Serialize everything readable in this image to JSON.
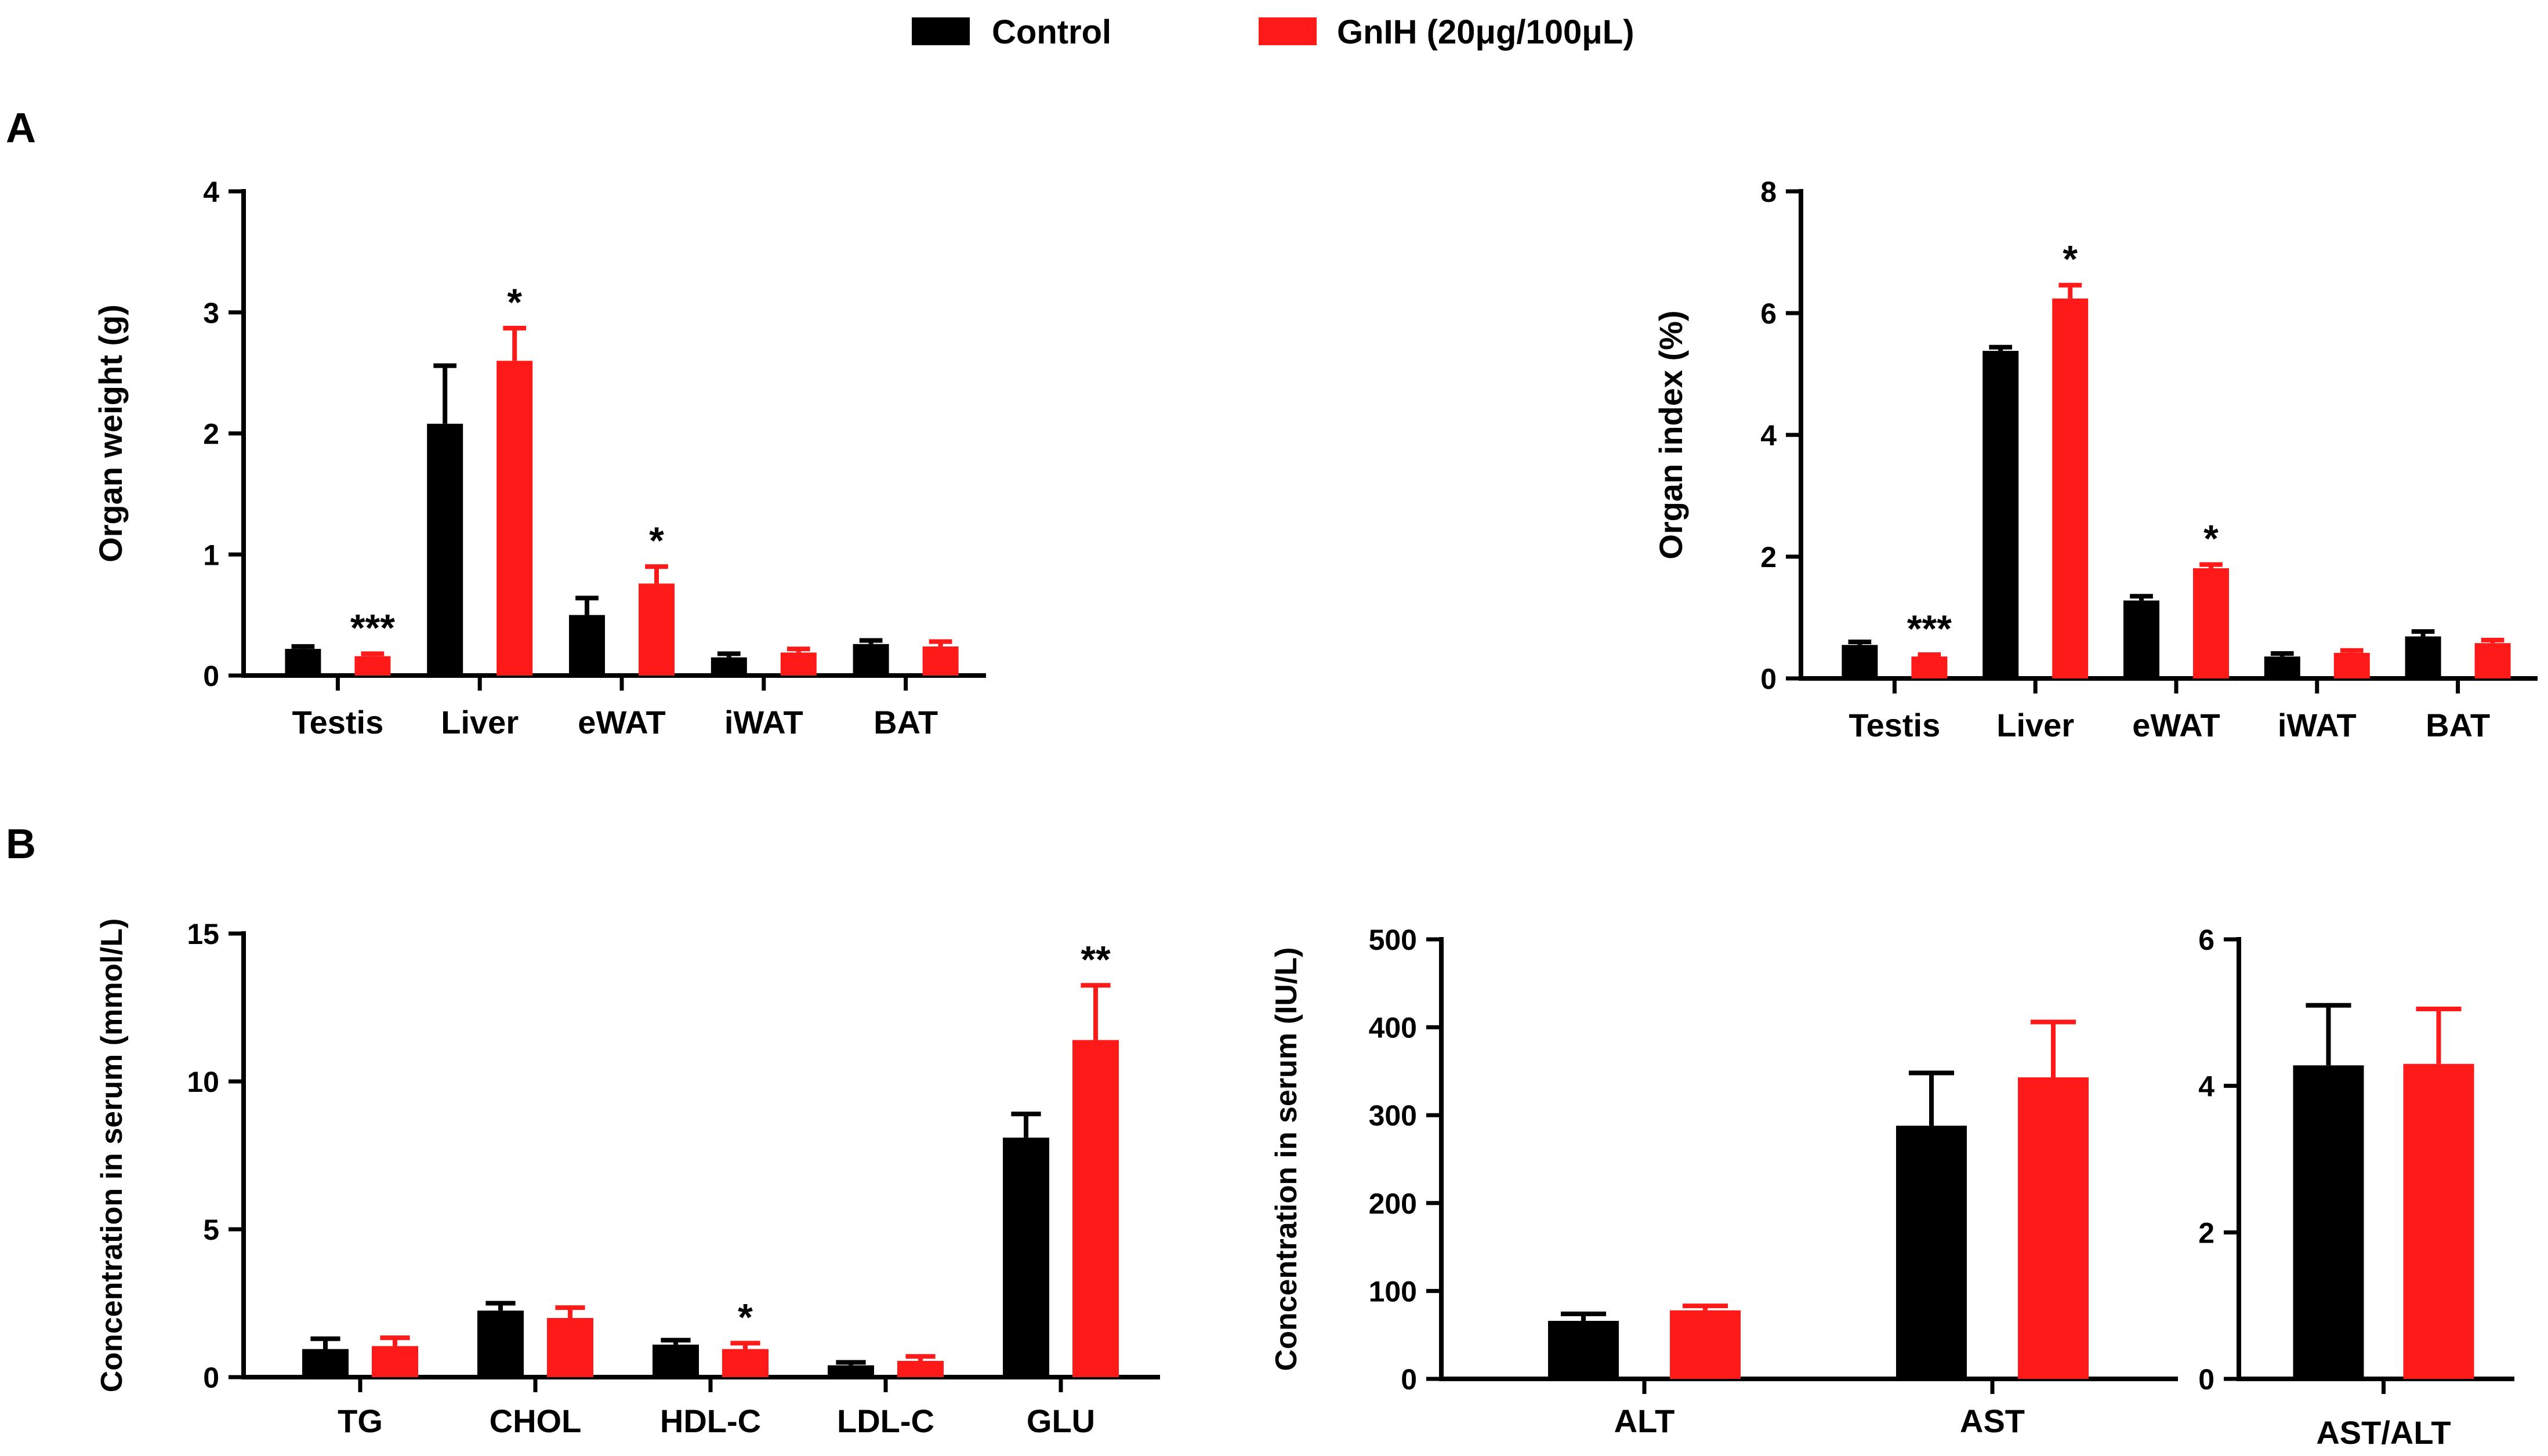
{
  "legend": {
    "control_label": "Control",
    "gnih_label": "GnIH (20μg/100μL)",
    "control_color": "#000000",
    "gnih_color": "#ff1a1a"
  },
  "panel_labels": {
    "a": "A",
    "b": "B"
  },
  "chart_data": [
    {
      "id": "organ-weight",
      "type": "bar",
      "title": "",
      "ylabel": "Organ weight (g)",
      "categories": [
        "Testis",
        "Liver",
        "eWAT",
        "iWAT",
        "BAT"
      ],
      "ylim": [
        0,
        4
      ],
      "yticks": [
        0,
        1,
        2,
        3,
        4
      ],
      "ytick_labels": [
        "0",
        "1",
        "2",
        "3",
        "4"
      ],
      "series": [
        {
          "name": "Control",
          "values": [
            0.22,
            2.08,
            0.5,
            0.15,
            0.26
          ],
          "errors": [
            0.02,
            0.48,
            0.14,
            0.03,
            0.03
          ]
        },
        {
          "name": "GnIH (20μg/100μL)",
          "values": [
            0.16,
            2.6,
            0.76,
            0.19,
            0.24
          ],
          "errors": [
            0.02,
            0.27,
            0.14,
            0.03,
            0.04
          ]
        }
      ],
      "annotations": [
        {
          "category": "Testis",
          "series": 1,
          "text": "***"
        },
        {
          "category": "Liver",
          "series": 1,
          "text": "*"
        },
        {
          "category": "eWAT",
          "series": 1,
          "text": "*"
        }
      ]
    },
    {
      "id": "organ-index",
      "type": "bar",
      "title": "",
      "ylabel": "Organ index (%)",
      "categories": [
        "Testis",
        "Liver",
        "eWAT",
        "iWAT",
        "BAT"
      ],
      "ylim": [
        0,
        8
      ],
      "yticks": [
        0,
        2,
        4,
        6,
        8
      ],
      "ytick_labels": [
        "0",
        "2",
        "4",
        "6",
        "8"
      ],
      "series": [
        {
          "name": "Control",
          "values": [
            0.55,
            5.38,
            1.28,
            0.36,
            0.69
          ],
          "errors": [
            0.05,
            0.06,
            0.07,
            0.05,
            0.08
          ]
        },
        {
          "name": "GnIH (20μg/100μL)",
          "values": [
            0.36,
            6.24,
            1.81,
            0.42,
            0.58
          ],
          "errors": [
            0.03,
            0.22,
            0.06,
            0.04,
            0.05
          ]
        }
      ],
      "annotations": [
        {
          "category": "Testis",
          "series": 1,
          "text": "***"
        },
        {
          "category": "Liver",
          "series": 1,
          "text": "*"
        },
        {
          "category": "eWAT",
          "series": 1,
          "text": "*"
        }
      ]
    },
    {
      "id": "serum-lipids",
      "type": "bar",
      "title": "",
      "ylabel": "Concentration in serum (mmol/L)",
      "categories": [
        "TG",
        "CHOL",
        "HDL-C",
        "LDL-C",
        "GLU"
      ],
      "ylim": [
        0,
        15
      ],
      "yticks": [
        0,
        5,
        10,
        15
      ],
      "ytick_labels": [
        "0",
        "5",
        "10",
        "15"
      ],
      "series": [
        {
          "name": "Control",
          "values": [
            0.95,
            2.25,
            1.1,
            0.4,
            8.1
          ],
          "errors": [
            0.35,
            0.25,
            0.15,
            0.1,
            0.8
          ]
        },
        {
          "name": "GnIH (20μg/100μL)",
          "values": [
            1.05,
            2.0,
            0.95,
            0.55,
            11.4
          ],
          "errors": [
            0.28,
            0.35,
            0.2,
            0.15,
            1.85
          ]
        }
      ],
      "annotations": [
        {
          "category": "HDL-C",
          "series": 1,
          "text": "*"
        },
        {
          "category": "GLU",
          "series": 1,
          "text": "**"
        }
      ]
    },
    {
      "id": "serum-enzymes",
      "type": "bar",
      "title": "",
      "ylabel": "Concentration in serum (IU/L)",
      "categories": [
        "ALT",
        "AST"
      ],
      "ylim": [
        0,
        500
      ],
      "yticks": [
        0,
        100,
        200,
        300,
        400,
        500
      ],
      "ytick_labels": [
        "0",
        "100",
        "200",
        "300",
        "400",
        "500"
      ],
      "series": [
        {
          "name": "Control",
          "values": [
            66,
            288
          ],
          "errors": [
            8,
            60
          ]
        },
        {
          "name": "GnIH (20μg/100μL)",
          "values": [
            78,
            343
          ],
          "errors": [
            5,
            63
          ]
        }
      ],
      "annotations": []
    },
    {
      "id": "ast-alt-ratio",
      "type": "bar",
      "title": "",
      "ylabel": "",
      "categories": [
        "AST/ALT"
      ],
      "ylim": [
        0,
        6
      ],
      "yticks": [
        0,
        2,
        4,
        6
      ],
      "ytick_labels": [
        "0",
        "2",
        "4",
        "6"
      ],
      "series": [
        {
          "name": "Control",
          "values": [
            4.28
          ],
          "errors": [
            0.82
          ]
        },
        {
          "name": "GnIH (20μg/100μL)",
          "values": [
            4.3
          ],
          "errors": [
            0.75
          ]
        }
      ],
      "annotations": []
    }
  ]
}
